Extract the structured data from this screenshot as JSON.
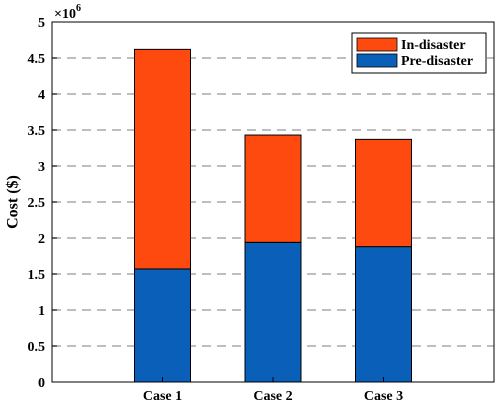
{
  "chart_data": {
    "type": "bar",
    "stacked": true,
    "categories": [
      "Case 1",
      "Case 2",
      "Case 3"
    ],
    "series": [
      {
        "name": "Pre-disaster",
        "values": [
          1.57,
          1.94,
          1.88
        ],
        "color": "#0a60b8"
      },
      {
        "name": "In-disaster",
        "values": [
          3.05,
          1.49,
          1.49
        ],
        "color": "#ff4a0f"
      }
    ],
    "ylabel": "Cost ($)",
    "ylim": [
      0,
      5
    ],
    "yticks": [
      "0",
      "0.5",
      "1",
      "1.5",
      "2",
      "2.5",
      "3",
      "3.5",
      "4",
      "4.5",
      "5"
    ],
    "y_multiplier_base": "×10",
    "y_multiplier_exp": "6",
    "grid": "horizontal-dashed",
    "legend_position": "top-right",
    "legend_order": [
      "In-disaster",
      "Pre-disaster"
    ]
  }
}
